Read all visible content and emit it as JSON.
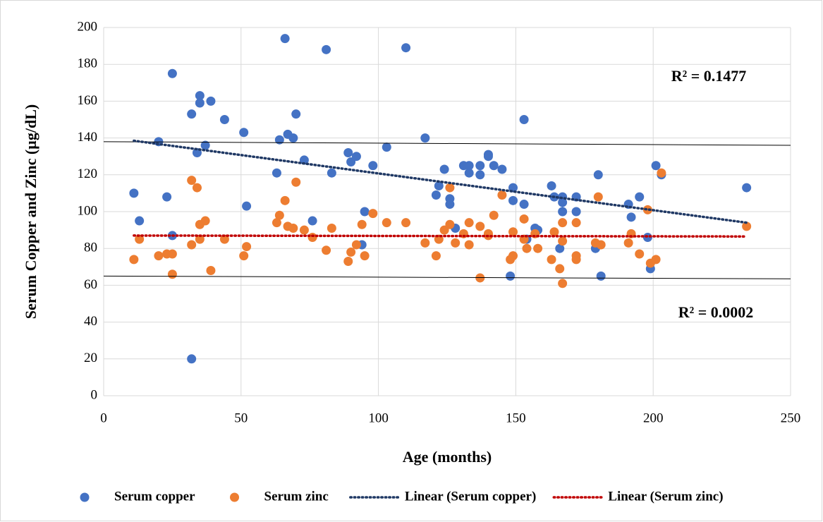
{
  "chart_data": {
    "type": "scatter",
    "x_label": "Age (months)",
    "y_label": "Serum Copper and Zinc (µg/dL)",
    "xlim": [
      0,
      250
    ],
    "xticks": [
      0,
      50,
      100,
      150,
      200,
      250
    ],
    "ylim": [
      0,
      200
    ],
    "yticks": [
      0,
      20,
      40,
      60,
      80,
      100,
      120,
      140,
      160,
      180,
      200
    ],
    "grid": true,
    "legend": "bottom",
    "series": [
      {
        "name": "Serum copper",
        "color": "#4472c4",
        "x": [
          11,
          13,
          20,
          23,
          25,
          25,
          32,
          32,
          34,
          35,
          35,
          37,
          39,
          44,
          51,
          52,
          63,
          64,
          66,
          67,
          69,
          70,
          73,
          76,
          81,
          83,
          89,
          90,
          92,
          94,
          95,
          98,
          103,
          110,
          117,
          121,
          122,
          124,
          126,
          126,
          128,
          131,
          133,
          133,
          137,
          137,
          140,
          140,
          142,
          145,
          148,
          149,
          149,
          153,
          153,
          154,
          157,
          158,
          163,
          164,
          166,
          167,
          167,
          167,
          172,
          172,
          179,
          180,
          181,
          191,
          192,
          195,
          198,
          199,
          201,
          203,
          234
        ],
        "values": [
          110,
          95,
          138,
          108,
          175,
          87,
          153,
          20,
          132,
          163,
          159,
          136,
          160,
          150,
          143,
          103,
          121,
          139,
          194,
          142,
          140,
          153,
          128,
          95,
          188,
          121,
          132,
          127,
          130,
          82,
          100,
          125,
          135,
          189,
          140,
          109,
          114,
          123,
          107,
          104,
          91,
          125,
          125,
          121,
          125,
          120,
          131,
          130,
          125,
          123,
          65,
          106,
          113,
          104,
          150,
          85,
          91,
          90,
          114,
          108,
          80,
          108,
          105,
          100,
          108,
          100,
          80,
          120,
          65,
          104,
          97,
          108,
          86,
          69,
          125,
          120,
          113
        ]
      },
      {
        "name": "Serum zinc",
        "color": "#ed7d31",
        "x": [
          11,
          13,
          20,
          23,
          25,
          25,
          32,
          32,
          34,
          35,
          35,
          37,
          39,
          44,
          51,
          52,
          63,
          64,
          66,
          67,
          69,
          70,
          73,
          76,
          81,
          83,
          89,
          90,
          92,
          94,
          95,
          98,
          103,
          110,
          117,
          121,
          122,
          124,
          126,
          126,
          128,
          131,
          133,
          133,
          137,
          137,
          140,
          140,
          142,
          145,
          148,
          149,
          149,
          153,
          153,
          154,
          157,
          158,
          163,
          164,
          166,
          167,
          167,
          167,
          172,
          172,
          172,
          179,
          180,
          181,
          191,
          192,
          195,
          198,
          199,
          201,
          203,
          234
        ],
        "values": [
          74,
          85,
          76,
          77,
          77,
          66,
          117,
          82,
          113,
          93,
          85,
          95,
          68,
          85,
          76,
          81,
          94,
          98,
          106,
          92,
          91,
          116,
          90,
          86,
          79,
          91,
          73,
          78,
          82,
          93,
          76,
          99,
          94,
          94,
          83,
          76,
          85,
          90,
          93,
          113,
          83,
          88,
          94,
          82,
          92,
          64,
          88,
          87,
          98,
          109,
          74,
          76,
          89,
          96,
          85,
          80,
          88,
          80,
          74,
          89,
          69,
          94,
          84,
          61,
          76,
          74,
          94,
          83,
          108,
          82,
          83,
          88,
          77,
          101,
          72,
          74,
          121,
          92
        ]
      }
    ],
    "trendlines": [
      {
        "name": "Linear (Serum copper)",
        "color": "#1f3864",
        "x": [
          11,
          234
        ],
        "values": [
          138.5,
          94
        ]
      },
      {
        "name": "Linear (Serum zinc)",
        "color": "#c00000",
        "x": [
          11,
          234
        ],
        "values": [
          87,
          86.5
        ]
      }
    ],
    "reference_lines": [
      {
        "x": [
          0,
          250
        ],
        "values": [
          138,
          136
        ]
      },
      {
        "x": [
          0,
          250
        ],
        "values": [
          65,
          63.5
        ]
      }
    ],
    "annotations": [
      "R² = 0.1477",
      "R² = 0.0002"
    ]
  }
}
